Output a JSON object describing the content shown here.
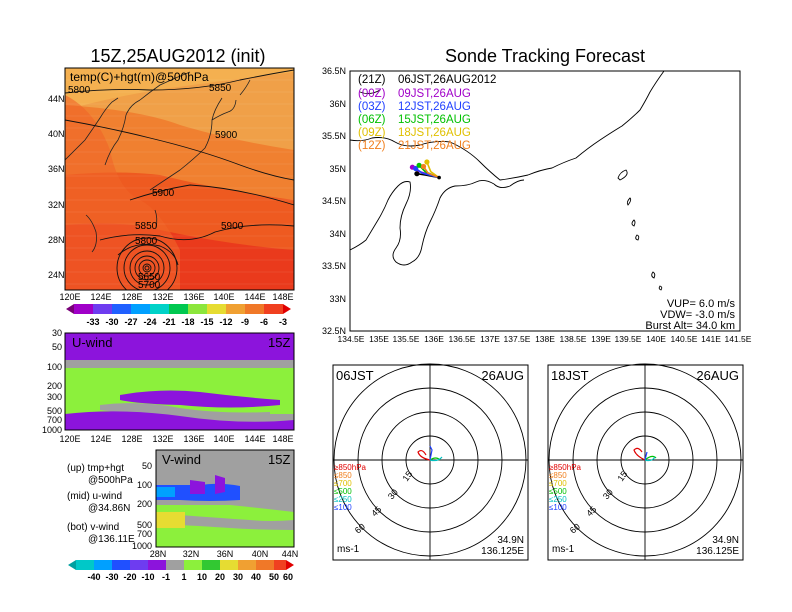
{
  "left": {
    "title": "15Z,25AUG2012 (init)",
    "map_label": "temp(C)+hgt(m)@500hPa",
    "contours": [
      "5800",
      "5850",
      "5900",
      "5900",
      "5900",
      "5850",
      "5800",
      "5700",
      "5650",
      "5850"
    ],
    "lon_ticks": [
      "120E",
      "124E",
      "128E",
      "132E",
      "136E",
      "140E",
      "144E",
      "148E"
    ],
    "lat_ticks": [
      "44N",
      "40N",
      "36N",
      "32N",
      "28N",
      "24N"
    ],
    "temp_colorbar": [
      "-33",
      "-30",
      "-27",
      "-24",
      "-21",
      "-18",
      "-15",
      "-12",
      "-9",
      "-6",
      "-3"
    ],
    "u_label": "U-wind",
    "u_time": "15Z",
    "p_ticks": [
      "30",
      "50",
      "100",
      "200",
      "300",
      "500",
      "700",
      "1000"
    ],
    "v_label": "V-wind",
    "v_time": "15Z",
    "v_lat_ticks": [
      "28N",
      "32N",
      "36N",
      "40N",
      "44N"
    ],
    "wind_colorbar": [
      "-40",
      "-30",
      "-20",
      "-10",
      "-1",
      "1",
      "10",
      "20",
      "30",
      "40",
      "50",
      "60"
    ],
    "legend": [
      {
        "a": "(up) tmp+hgt",
        "b": "@500hPa"
      },
      {
        "a": "(mid) u-wind",
        "b": "@34.86N"
      },
      {
        "a": "(bot) v-wind",
        "b": "@136.11E"
      }
    ]
  },
  "right": {
    "title": "Sonde Tracking Forecast",
    "lat_ticks": [
      "36.5N",
      "36N",
      "35.5N",
      "35N",
      "34.5N",
      "34N",
      "33.5N",
      "33N",
      "32.5N"
    ],
    "lon_ticks": [
      "134.5E",
      "135E",
      "135.5E",
      "136E",
      "136.5E",
      "137E",
      "137.5E",
      "138E",
      "138.5E",
      "139E",
      "139.5E",
      "140E",
      "140.5E",
      "141E",
      "141.5E"
    ],
    "launches": [
      {
        "z": "(21Z)",
        "t": "06JST,26AUG2012",
        "color": "#000000"
      },
      {
        "z": "(00Z)",
        "t": "09JST,26AUG",
        "color": "#a000c8"
      },
      {
        "z": "(03Z)",
        "t": "12JST,26AUG",
        "color": "#2040ff"
      },
      {
        "z": "(06Z)",
        "t": "15JST,26AUG",
        "color": "#00c000"
      },
      {
        "z": "(09Z)",
        "t": "18JST,26AUG",
        "color": "#e0c000"
      },
      {
        "z": "(12Z)",
        "t": "21JST,26AUG",
        "color": "#f08020"
      }
    ],
    "params": {
      "vup": "VUP=  6.0  m/s",
      "vdw": "VDW= -3.0  m/s",
      "burst": "Burst Alt=  34.0  km"
    }
  },
  "polars": [
    {
      "time": "06JST",
      "date": "26AUG",
      "lat": "34.9N",
      "lon": "136.125E",
      "unit": "ms-1"
    },
    {
      "time": "18JST",
      "date": "26AUG",
      "lat": "34.9N",
      "lon": "136.125E",
      "unit": "ms-1"
    }
  ],
  "polar_rings": [
    "15",
    "30",
    "45",
    "60"
  ],
  "polar_levels": [
    {
      "label": "≥850hPa",
      "color": "#e00000"
    },
    {
      "label": "≤850",
      "color": "#f08020"
    },
    {
      "label": "≤700",
      "color": "#e0c000"
    },
    {
      "label": "≤500",
      "color": "#00c000"
    },
    {
      "label": "≤250",
      "color": "#00c0c0"
    },
    {
      "label": "≤100",
      "color": "#2040ff"
    }
  ],
  "colors": {
    "purple": "#8c14dc",
    "green": "#8cf03c",
    "gray": "#a0a0a0",
    "blue": "#2050ff"
  },
  "chart_data": [
    {
      "type": "heatmap",
      "title": "15Z,25AUG2012 (init)",
      "subtitle": "temp(C)+hgt(m)@500hPa",
      "x": "longitude",
      "y": "latitude",
      "xlim": [
        "120E",
        "149E"
      ],
      "ylim": [
        "22N",
        "47N"
      ],
      "colorbar": [
        -33,
        -30,
        -27,
        -24,
        -21,
        -18,
        -15,
        -12,
        -9,
        -6,
        -3
      ],
      "contour_labels": [
        5650,
        5700,
        5800,
        5850,
        5900
      ]
    },
    {
      "type": "heatmap",
      "title": "U-wind",
      "time": "15Z",
      "x": "longitude",
      "y": "pressure (hPa)",
      "y_ticks": [
        30,
        50,
        100,
        200,
        300,
        500,
        700,
        1000
      ]
    },
    {
      "type": "heatmap",
      "title": "V-wind",
      "time": "15Z",
      "x": "latitude",
      "y": "pressure (hPa)",
      "colorbar": [
        -40,
        -30,
        -20,
        -10,
        -1,
        1,
        10,
        20,
        30,
        40,
        50,
        60
      ]
    },
    {
      "type": "line",
      "title": "Sonde Tracking Forecast",
      "xlim": [
        134.5,
        141.5
      ],
      "ylim": [
        32.5,
        36.5
      ],
      "series": [
        {
          "name": "(21Z) 06JST,26AUG2012",
          "lon": [
            136.1,
            135.85,
            135.7
          ],
          "lat": [
            34.86,
            34.9,
            34.92
          ]
        },
        {
          "name": "(00Z) 09JST,26AUG",
          "lon": [
            136.1,
            135.75,
            135.62
          ],
          "lat": [
            34.86,
            34.95,
            35.02
          ]
        },
        {
          "name": "(03Z) 12JST,26AUG",
          "lon": [
            136.1,
            135.8,
            135.68
          ],
          "lat": [
            34.86,
            34.93,
            35.0
          ]
        },
        {
          "name": "(06Z) 15JST,26AUG",
          "lon": [
            136.1,
            135.85,
            135.74
          ],
          "lat": [
            34.86,
            34.95,
            35.05
          ]
        },
        {
          "name": "(09Z) 18JST,26AUG",
          "lon": [
            136.1,
            135.95,
            135.88
          ],
          "lat": [
            34.86,
            34.95,
            35.1
          ]
        },
        {
          "name": "(12Z) 21JST,26AUG",
          "lon": [
            136.1,
            135.9,
            135.82
          ],
          "lat": [
            34.86,
            34.93,
            35.03
          ]
        }
      ],
      "VUP_ms": 6.0,
      "VDW_ms": -3.0,
      "burst_alt_km": 34.0
    }
  ]
}
